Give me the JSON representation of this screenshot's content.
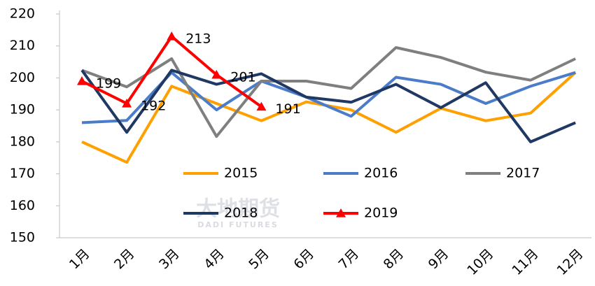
{
  "chart_data": {
    "type": "line",
    "watermark": "大地期货",
    "watermark_sub": "DADI FUTURES",
    "categories": [
      "1月",
      "2月",
      "3月",
      "4月",
      "5月",
      "6月",
      "7月",
      "8月",
      "9月",
      "10月",
      "11月",
      "12月"
    ],
    "ylim": [
      150,
      220
    ],
    "yticks": [
      150,
      160,
      170,
      180,
      190,
      200,
      210,
      220
    ],
    "series": [
      {
        "name": "2015",
        "color": "#ffa000",
        "values": [
          180,
          173.6,
          197.4,
          192,
          186.6,
          192.5,
          190,
          183,
          190.5,
          186.6,
          189,
          201.7
        ]
      },
      {
        "name": "2016",
        "color": "#4a7cc9",
        "values": [
          186,
          186.7,
          201.7,
          190,
          199,
          194,
          188,
          200.2,
          198,
          192,
          197.4,
          201.7
        ]
      },
      {
        "name": "2017",
        "color": "#7f7f7f",
        "values": [
          202.4,
          197.2,
          206,
          181.7,
          199,
          199,
          196.7,
          209.5,
          206.4,
          201.8,
          199.3,
          206
        ]
      },
      {
        "name": "2018",
        "color": "#1f3864",
        "values": [
          202.4,
          183,
          202.4,
          198,
          201.3,
          194,
          192.4,
          198,
          190.7,
          198.5,
          180,
          186
        ]
      },
      {
        "name": "2019",
        "color": "#ff0000",
        "marker": "triangle",
        "data_labels": true,
        "values": [
          199,
          192,
          213,
          201,
          191,
          null,
          null,
          null,
          null,
          null,
          null,
          null
        ]
      }
    ],
    "legend": "center"
  }
}
